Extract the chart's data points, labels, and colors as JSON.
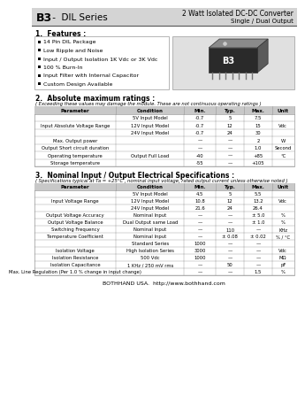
{
  "title_left_bold": "B3",
  "title_left_rest": " -  DIL Series",
  "title_right_line1": "2 Watt Isolated DC-DC Converter",
  "title_right_line2": "Single / Dual Output",
  "header_bg": "#d4d4d4",
  "section1_title": "1.  Features :",
  "features": [
    "14 Pin DIL Package",
    "Low Ripple and Noise",
    "Input / Output Isolation 1K Vdc or 3K Vdc",
    "100 % Burn-In",
    "Input Filter with Internal Capacitor",
    "Custom Design Available"
  ],
  "section2_title": "2.  Absolute maximum ratings :",
  "section2_note": "( Exceeding these values may damage the module. These are not continuous operating ratings )",
  "abs_headers": [
    "Parameter",
    "Condition",
    "Min.",
    "Typ.",
    "Max.",
    "Unit"
  ],
  "abs_rows": [
    [
      "",
      "5V Input Model",
      "-0.7",
      "5",
      "7.5",
      ""
    ],
    [
      "Input Absolute Voltage Range",
      "12V Input Model",
      "-0.7",
      "12",
      "15",
      "Vdc"
    ],
    [
      "",
      "24V Input Model",
      "-0.7",
      "24",
      "30",
      ""
    ],
    [
      "Max. Output power",
      "",
      "—",
      "—",
      "2",
      "W"
    ],
    [
      "Output Short circuit duration",
      "",
      "—",
      "—",
      "1.0",
      "Second"
    ],
    [
      "Operating temperature",
      "Output Full Load",
      "-40",
      "—",
      "+85",
      "°C"
    ],
    [
      "Storage temperature",
      "",
      "-55",
      "—",
      "+105",
      ""
    ]
  ],
  "section3_title": "3.  Nominal Input / Output Electrical Specifications :",
  "section3_note": "( Specifications typical at Ta = +25°C , nominal input voltage, rated output current unless otherwise noted )",
  "elec_headers": [
    "Parameter",
    "Condition",
    "Min.",
    "Typ.",
    "Max.",
    "Unit"
  ],
  "elec_rows": [
    [
      "",
      "5V Input Model",
      "4.5",
      "5",
      "5.5",
      ""
    ],
    [
      "Input Voltage Range",
      "12V Input Model",
      "10.8",
      "12",
      "13.2",
      "Vdc"
    ],
    [
      "",
      "24V Input Model",
      "21.6",
      "24",
      "26.4",
      ""
    ],
    [
      "Output Voltage Accuracy",
      "Nominal Input",
      "—",
      "—",
      "± 5.0",
      "%"
    ],
    [
      "Output Voltage Balance",
      "Dual Output same Load",
      "—",
      "—",
      "± 1.0",
      "%"
    ],
    [
      "Switching Frequency",
      "Nominal Input",
      "—",
      "110",
      "—",
      "KHz"
    ],
    [
      "Temperature Coefficient",
      "Nominal Input",
      "—",
      "± 0.08",
      "± 0.02",
      "% / °C"
    ],
    [
      "",
      "Standard Series",
      "1000",
      "—",
      "—",
      ""
    ],
    [
      "Isolation Voltage",
      "High Isolation Series",
      "3000",
      "—",
      "—",
      "Vdc"
    ],
    [
      "Isolation Resistance",
      "500 Vdc",
      "1000",
      "—",
      "—",
      "MΩ"
    ],
    [
      "Isolation Capacitance",
      "1 KHz / 250 mV rms",
      "—",
      "50",
      "—",
      "pF"
    ],
    [
      "Max. Line Regulation (Per 1.0 % change in input change)",
      "",
      "—",
      "—",
      "1.5",
      "%"
    ]
  ],
  "footer": "BOTHHAND USA.  http://www.bothhand.com",
  "body_bg": "#ffffff",
  "table_hdr_bg": "#c8c8c8",
  "table_border": "#999999"
}
